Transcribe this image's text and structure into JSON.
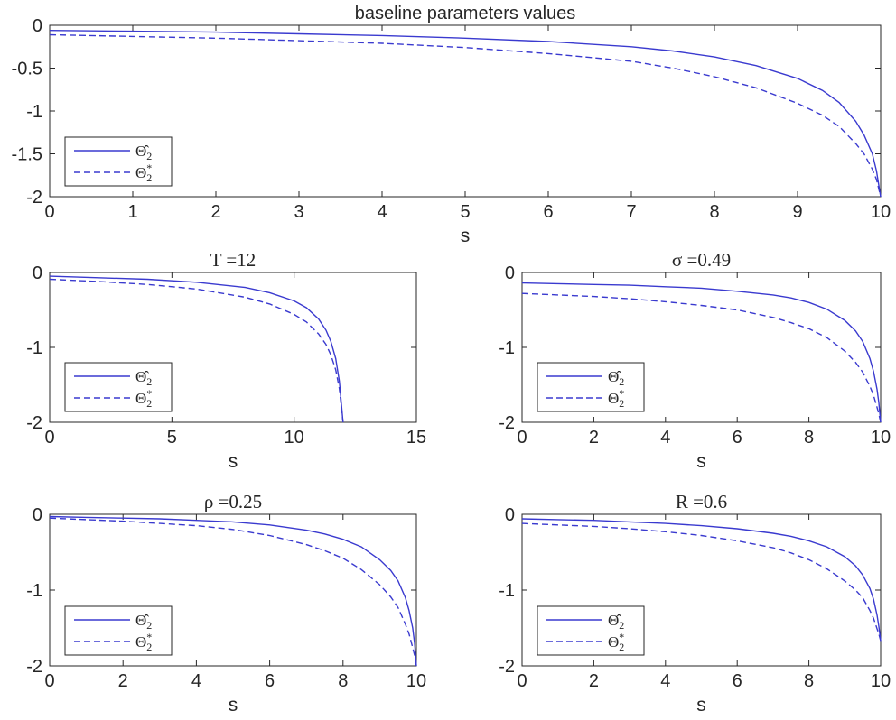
{
  "chart_data": [
    {
      "type": "line",
      "title": "baseline parameters values",
      "title_style": "plain",
      "xlabel": "s",
      "ylabel": "",
      "xlim": [
        0,
        10
      ],
      "ylim": [
        -2,
        0
      ],
      "xticks": [
        0,
        1,
        2,
        3,
        4,
        5,
        6,
        7,
        8,
        9,
        10
      ],
      "yticks": [
        0,
        -0.5,
        -1,
        -1.5,
        -2
      ],
      "ytick_labels": [
        "0",
        "-0.5",
        "-1",
        "-1.5",
        "-2"
      ],
      "grid": false,
      "legend_position": "bottom-left",
      "series": [
        {
          "name": "Θ̂2",
          "style": "solid",
          "color": "#3a3acf",
          "x": [
            0,
            1,
            2,
            3,
            4,
            5,
            6,
            7,
            7.5,
            8,
            8.5,
            9,
            9.3,
            9.5,
            9.7,
            9.8,
            9.9,
            9.95,
            10
          ],
          "y": [
            -0.06,
            -0.07,
            -0.08,
            -0.1,
            -0.12,
            -0.15,
            -0.19,
            -0.25,
            -0.3,
            -0.37,
            -0.47,
            -0.62,
            -0.76,
            -0.9,
            -1.12,
            -1.28,
            -1.5,
            -1.7,
            -2.0
          ]
        },
        {
          "name": "Θ2*",
          "style": "dashed",
          "color": "#3a3acf",
          "x": [
            0,
            1,
            2,
            3,
            4,
            5,
            6,
            7,
            7.5,
            8,
            8.5,
            9,
            9.3,
            9.5,
            9.7,
            9.8,
            9.9,
            9.95,
            10
          ],
          "y": [
            -0.11,
            -0.13,
            -0.15,
            -0.18,
            -0.21,
            -0.26,
            -0.33,
            -0.42,
            -0.5,
            -0.6,
            -0.73,
            -0.91,
            -1.05,
            -1.18,
            -1.38,
            -1.5,
            -1.68,
            -1.8,
            -2.0
          ]
        }
      ]
    },
    {
      "type": "line",
      "title": "T =12",
      "title_style": "math",
      "xlabel": "s",
      "ylabel": "",
      "xlim": [
        0,
        15
      ],
      "ylim": [
        -2,
        0
      ],
      "xticks": [
        0,
        5,
        10,
        15
      ],
      "yticks": [
        0,
        -1,
        -2
      ],
      "ytick_labels": [
        "0",
        "-1",
        "-2"
      ],
      "grid": false,
      "legend_position": "bottom-left",
      "series": [
        {
          "name": "Θ̂2",
          "style": "solid",
          "color": "#3a3acf",
          "x": [
            0,
            2,
            4,
            6,
            8,
            9,
            10,
            10.5,
            11,
            11.3,
            11.5,
            11.7,
            11.85,
            12
          ],
          "y": [
            -0.05,
            -0.07,
            -0.09,
            -0.13,
            -0.2,
            -0.27,
            -0.38,
            -0.47,
            -0.62,
            -0.77,
            -0.92,
            -1.15,
            -1.45,
            -2.0
          ]
        },
        {
          "name": "Θ2*",
          "style": "dashed",
          "color": "#3a3acf",
          "x": [
            0,
            2,
            4,
            6,
            8,
            9,
            10,
            10.5,
            11,
            11.3,
            11.5,
            11.7,
            11.85,
            12
          ],
          "y": [
            -0.09,
            -0.12,
            -0.16,
            -0.22,
            -0.33,
            -0.42,
            -0.56,
            -0.66,
            -0.82,
            -0.96,
            -1.1,
            -1.3,
            -1.55,
            -2.0
          ]
        }
      ]
    },
    {
      "type": "line",
      "title": "σ =0.49",
      "title_style": "math",
      "xlabel": "s",
      "ylabel": "",
      "xlim": [
        0,
        10
      ],
      "ylim": [
        -2,
        0
      ],
      "xticks": [
        0,
        2,
        4,
        6,
        8,
        10
      ],
      "yticks": [
        0,
        -1,
        -2
      ],
      "ytick_labels": [
        "0",
        "-1",
        "-2"
      ],
      "grid": false,
      "legend_position": "bottom-left",
      "series": [
        {
          "name": "Θ̂2",
          "style": "solid",
          "color": "#3a3acf",
          "x": [
            0,
            1,
            2,
            3,
            4,
            5,
            6,
            7,
            7.5,
            8,
            8.5,
            9,
            9.3,
            9.5,
            9.7,
            9.8,
            9.9,
            9.95,
            10
          ],
          "y": [
            -0.14,
            -0.15,
            -0.16,
            -0.17,
            -0.19,
            -0.21,
            -0.25,
            -0.3,
            -0.34,
            -0.4,
            -0.49,
            -0.64,
            -0.78,
            -0.92,
            -1.15,
            -1.32,
            -1.56,
            -1.74,
            -2.0
          ]
        },
        {
          "name": "Θ2*",
          "style": "dashed",
          "color": "#3a3acf",
          "x": [
            0,
            1,
            2,
            3,
            4,
            5,
            6,
            7,
            7.5,
            8,
            8.5,
            9,
            9.3,
            9.5,
            9.7,
            9.8,
            9.9,
            9.95,
            10
          ],
          "y": [
            -0.28,
            -0.3,
            -0.32,
            -0.35,
            -0.39,
            -0.44,
            -0.5,
            -0.6,
            -0.67,
            -0.75,
            -0.87,
            -1.05,
            -1.2,
            -1.33,
            -1.52,
            -1.64,
            -1.8,
            -1.89,
            -2.0
          ]
        }
      ]
    },
    {
      "type": "line",
      "title": "ρ =0.25",
      "title_style": "math",
      "xlabel": "s",
      "ylabel": "",
      "xlim": [
        0,
        10
      ],
      "ylim": [
        -2,
        0
      ],
      "xticks": [
        0,
        2,
        4,
        6,
        8,
        10
      ],
      "yticks": [
        0,
        -1,
        -2
      ],
      "ytick_labels": [
        "0",
        "-1",
        "-2"
      ],
      "grid": false,
      "legend_position": "bottom-left",
      "series": [
        {
          "name": "Θ̂2",
          "style": "solid",
          "color": "#3a3acf",
          "x": [
            0,
            1,
            2,
            3,
            4,
            5,
            6,
            7,
            7.5,
            8,
            8.5,
            9,
            9.3,
            9.5,
            9.7,
            9.8,
            9.9,
            9.95,
            10
          ],
          "y": [
            -0.03,
            -0.04,
            -0.05,
            -0.06,
            -0.08,
            -0.1,
            -0.14,
            -0.21,
            -0.26,
            -0.33,
            -0.43,
            -0.6,
            -0.74,
            -0.88,
            -1.1,
            -1.27,
            -1.5,
            -1.7,
            -2.0
          ]
        },
        {
          "name": "Θ2*",
          "style": "dashed",
          "color": "#3a3acf",
          "x": [
            0,
            1,
            2,
            3,
            4,
            5,
            6,
            7,
            7.5,
            8,
            8.5,
            9,
            9.3,
            9.5,
            9.7,
            9.8,
            9.9,
            9.95,
            10
          ],
          "y": [
            -0.05,
            -0.07,
            -0.09,
            -0.12,
            -0.15,
            -0.2,
            -0.28,
            -0.4,
            -0.48,
            -0.58,
            -0.73,
            -0.93,
            -1.09,
            -1.23,
            -1.45,
            -1.58,
            -1.76,
            -1.86,
            -2.0
          ]
        }
      ]
    },
    {
      "type": "line",
      "title": "R =0.6",
      "title_style": "math",
      "xlabel": "s",
      "ylabel": "",
      "xlim": [
        0,
        10
      ],
      "ylim": [
        -2,
        0
      ],
      "xticks": [
        0,
        2,
        4,
        6,
        8,
        10
      ],
      "yticks": [
        0,
        -1,
        -2
      ],
      "ytick_labels": [
        "0",
        "-1",
        "-2"
      ],
      "grid": false,
      "legend_position": "bottom-left",
      "series": [
        {
          "name": "Θ̂2",
          "style": "solid",
          "color": "#3a3acf",
          "x": [
            0,
            1,
            2,
            3,
            4,
            5,
            6,
            7,
            7.5,
            8,
            8.5,
            9,
            9.3,
            9.5,
            9.7,
            9.8,
            9.9,
            9.95,
            10
          ],
          "y": [
            -0.06,
            -0.07,
            -0.08,
            -0.1,
            -0.12,
            -0.15,
            -0.19,
            -0.25,
            -0.29,
            -0.35,
            -0.43,
            -0.56,
            -0.68,
            -0.8,
            -0.98,
            -1.12,
            -1.33,
            -1.48,
            -1.67
          ]
        },
        {
          "name": "Θ2*",
          "style": "dashed",
          "color": "#3a3acf",
          "x": [
            0,
            1,
            2,
            3,
            4,
            5,
            6,
            7,
            7.5,
            8,
            8.5,
            9,
            9.3,
            9.5,
            9.7,
            9.8,
            9.9,
            9.95,
            10
          ],
          "y": [
            -0.12,
            -0.14,
            -0.16,
            -0.19,
            -0.23,
            -0.28,
            -0.35,
            -0.44,
            -0.51,
            -0.6,
            -0.72,
            -0.88,
            -1.0,
            -1.1,
            -1.27,
            -1.37,
            -1.51,
            -1.58,
            -1.67
          ]
        }
      ]
    }
  ]
}
